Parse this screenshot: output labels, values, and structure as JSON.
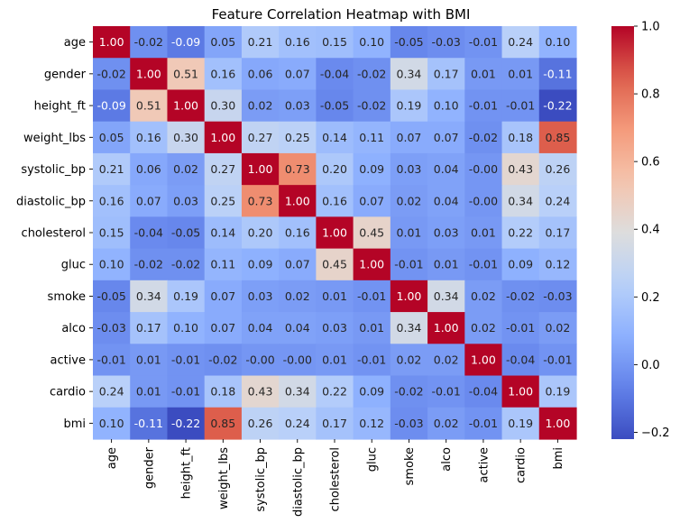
{
  "chart_data": {
    "type": "heatmap",
    "title": "Feature Correlation Heatmap with BMI",
    "xlabel": "",
    "ylabel": "",
    "labels": [
      "age",
      "gender",
      "height_ft",
      "weight_lbs",
      "systolic_bp",
      "diastolic_bp",
      "cholesterol",
      "gluc",
      "smoke",
      "alco",
      "active",
      "cardio",
      "bmi"
    ],
    "matrix": [
      [
        1.0,
        -0.02,
        -0.09,
        0.05,
        0.21,
        0.16,
        0.15,
        0.1,
        -0.05,
        -0.03,
        -0.01,
        0.24,
        0.1
      ],
      [
        -0.02,
        1.0,
        0.51,
        0.16,
        0.06,
        0.07,
        -0.04,
        -0.02,
        0.34,
        0.17,
        0.01,
        0.01,
        -0.11
      ],
      [
        -0.09,
        0.51,
        1.0,
        0.3,
        0.02,
        0.03,
        -0.05,
        -0.02,
        0.19,
        0.1,
        -0.01,
        -0.01,
        -0.22
      ],
      [
        0.05,
        0.16,
        0.3,
        1.0,
        0.27,
        0.25,
        0.14,
        0.11,
        0.07,
        0.07,
        -0.02,
        0.18,
        0.85
      ],
      [
        0.21,
        0.06,
        0.02,
        0.27,
        1.0,
        0.73,
        0.2,
        0.09,
        0.03,
        0.04,
        -0.0,
        0.43,
        0.26
      ],
      [
        0.16,
        0.07,
        0.03,
        0.25,
        0.73,
        1.0,
        0.16,
        0.07,
        0.02,
        0.04,
        -0.0,
        0.34,
        0.24
      ],
      [
        0.15,
        -0.04,
        -0.05,
        0.14,
        0.2,
        0.16,
        1.0,
        0.45,
        0.01,
        0.03,
        0.01,
        0.22,
        0.17
      ],
      [
        0.1,
        -0.02,
        -0.02,
        0.11,
        0.09,
        0.07,
        0.45,
        1.0,
        -0.01,
        0.01,
        -0.01,
        0.09,
        0.12
      ],
      [
        -0.05,
        0.34,
        0.19,
        0.07,
        0.03,
        0.02,
        0.01,
        -0.01,
        1.0,
        0.34,
        0.02,
        -0.02,
        -0.03
      ],
      [
        -0.03,
        0.17,
        0.1,
        0.07,
        0.04,
        0.04,
        0.03,
        0.01,
        0.34,
        1.0,
        0.02,
        -0.01,
        0.02
      ],
      [
        -0.01,
        0.01,
        -0.01,
        -0.02,
        -0.0,
        -0.0,
        0.01,
        -0.01,
        0.02,
        0.02,
        1.0,
        -0.04,
        -0.01
      ],
      [
        0.24,
        0.01,
        -0.01,
        0.18,
        0.43,
        0.34,
        0.22,
        0.09,
        -0.02,
        -0.01,
        -0.04,
        1.0,
        0.19
      ],
      [
        0.1,
        -0.11,
        -0.22,
        0.85,
        0.26,
        0.24,
        0.17,
        0.12,
        -0.03,
        0.02,
        -0.01,
        0.19,
        1.0
      ]
    ],
    "value_labels_shown": true,
    "value_format": "2 decimals",
    "colormap": "coolwarm",
    "color_range": [
      -0.22,
      1.0
    ],
    "colorbar_ticks": [
      -0.2,
      0.0,
      0.2,
      0.4,
      0.6,
      0.8,
      1.0
    ],
    "colorbar_tick_labels": [
      "−0.2",
      "0.0",
      "0.2",
      "0.4",
      "0.6",
      "0.8",
      "1.0"
    ],
    "colorbar_placement": "right",
    "grid": false
  }
}
